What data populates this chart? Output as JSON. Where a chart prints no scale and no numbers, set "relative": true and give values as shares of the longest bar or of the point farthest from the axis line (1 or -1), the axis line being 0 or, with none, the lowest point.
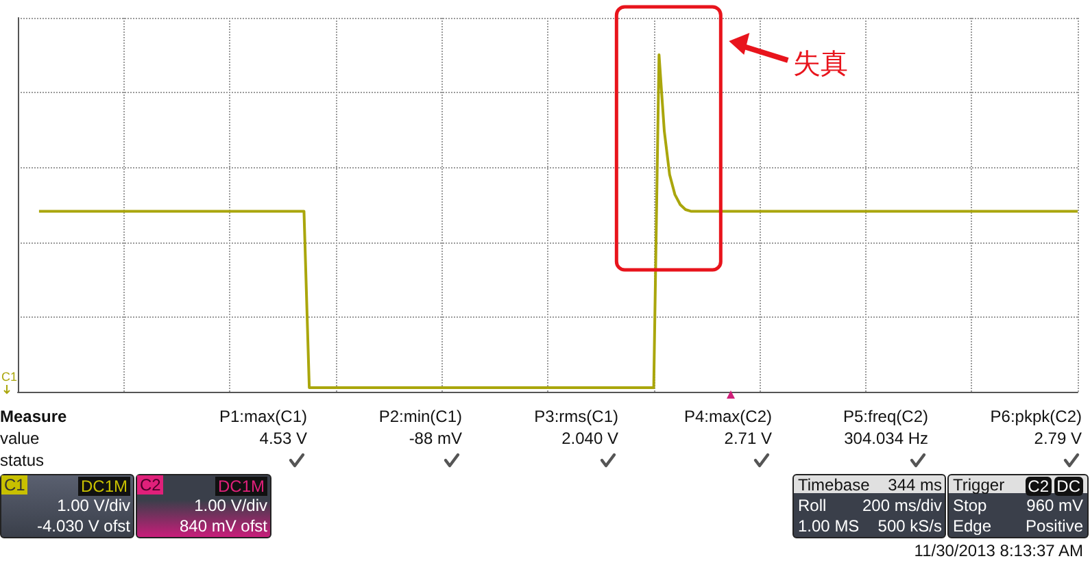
{
  "chart_data": {
    "type": "line",
    "relative": true,
    "grid": true,
    "categories": [
      null,
      null,
      null,
      null,
      null,
      null,
      null,
      null,
      null,
      null,
      null,
      null,
      null,
      null,
      null,
      null,
      null,
      null,
      null,
      null,
      null,
      null,
      null,
      null,
      null,
      null,
      null,
      null,
      null,
      null,
      null,
      null,
      null,
      null,
      null,
      null,
      null,
      null,
      null,
      null,
      null,
      null,
      null,
      null,
      null,
      null,
      null,
      null,
      null,
      null,
      null,
      null,
      null,
      null,
      null,
      null,
      null,
      null,
      null,
      null,
      null,
      null,
      null,
      null,
      null,
      null,
      null,
      null,
      null,
      null,
      null,
      null,
      null,
      null,
      null,
      null,
      null,
      null,
      null,
      null,
      null,
      null,
      null,
      null,
      null,
      null,
      null,
      null,
      null,
      null,
      null,
      null,
      null,
      null,
      null,
      null,
      null,
      null,
      null,
      null,
      null,
      null,
      null,
      null,
      null,
      null,
      null,
      null,
      null,
      null,
      null,
      null,
      null,
      null,
      null,
      null,
      null,
      null,
      null,
      null,
      null,
      null,
      null,
      null,
      null,
      null,
      null,
      null,
      null,
      null,
      null,
      null,
      null,
      null,
      null,
      null,
      null,
      null,
      null,
      null,
      null,
      null,
      null,
      null,
      null,
      null,
      null,
      null,
      null,
      null,
      null,
      null,
      null,
      null,
      null,
      null,
      null,
      null,
      null,
      null,
      null,
      null,
      null,
      null,
      null,
      null,
      null,
      null,
      null,
      null,
      null,
      null,
      null,
      null,
      null,
      null,
      null,
      null,
      null,
      null,
      null,
      null,
      null,
      null,
      null,
      null,
      null,
      null,
      null,
      null,
      null,
      null,
      null,
      null,
      null,
      null,
      null,
      null,
      null,
      null,
      null
    ],
    "series": [
      {
        "color": "#aaa60c",
        "values": [
          null,
          null,
          null,
          null,
          0.53,
          0.53,
          0.53,
          0.53,
          0.53,
          0.53,
          0.53,
          0.53,
          0.53,
          0.53,
          0.53,
          0.53,
          0.53,
          0.53,
          0.53,
          0.53,
          0.53,
          0.53,
          0.53,
          0.53,
          0.53,
          0.53,
          0.53,
          0.53,
          0.53,
          0.53,
          0.53,
          0.53,
          0.53,
          0.53,
          0.53,
          0.53,
          0.53,
          0.53,
          0.53,
          0.53,
          0.53,
          0.53,
          0.53,
          0.53,
          0.53,
          0.53,
          0.53,
          0.53,
          0.53,
          0.53,
          0.53,
          0.53,
          0.53,
          0.53,
          0.53,
          0,
          0,
          0,
          0,
          0,
          0,
          0,
          0,
          0,
          0,
          0,
          0,
          0,
          0,
          0,
          0,
          0,
          0,
          0,
          0,
          0,
          0,
          0,
          0,
          0,
          0,
          0,
          0,
          0,
          0,
          0,
          0,
          0,
          0,
          0,
          0,
          0,
          0,
          0,
          0,
          0,
          0,
          0,
          0,
          0,
          0,
          0,
          0,
          0,
          0,
          0,
          0,
          0,
          0,
          0,
          0,
          0,
          0,
          0,
          0,
          0,
          0,
          0,
          0,
          0,
          0,
          1,
          0.77,
          0.64,
          0.58,
          0.55,
          0.535,
          0.53,
          0.53,
          0.53,
          0.53,
          0.53,
          0.53,
          0.53,
          0.53,
          0.53,
          0.53,
          0.53,
          0.53,
          0.53,
          0.53,
          0.53,
          0.53,
          0.53,
          0.53,
          0.53,
          0.53,
          0.53,
          0.53,
          0.53,
          0.53,
          0.53,
          0.53,
          0.53,
          0.53,
          0.53,
          0.53,
          0.53,
          0.53,
          0.53,
          0.53,
          0.53,
          0.53,
          0.53,
          0.53,
          0.53,
          0.53,
          0.53,
          0.53,
          0.53,
          0.53,
          0.53,
          0.53,
          0.53,
          0.53,
          0.53,
          0.53,
          0.53,
          0.53,
          0.53,
          0.53,
          0.53,
          0.53,
          0.53,
          0.53,
          0.53,
          0.53,
          0.53,
          0.53,
          0.53,
          0.53,
          0.53,
          0.53,
          0.53,
          0.53,
          0.53,
          0.53,
          0.53,
          0.53,
          0.53,
          0.53
        ]
      }
    ],
    "annotations": [
      "失真",
      "Measure",
      "value",
      "status",
      "P1:max(C1)",
      "4.53 V",
      "P2:min(C1)",
      "-88 mV",
      "P3:rms(C1)",
      "2.040 V",
      "P4:max(C2)",
      "2.71 V",
      "P5:freq(C2)",
      "304.034 Hz",
      "P6:pkpk(C2)",
      "2.79 V",
      "C1",
      "DC1M",
      "1.00 V/div",
      "-4.030 V ofst",
      "C2",
      "DC1M",
      "1.00 V/div",
      "840 mV ofst",
      "Timebase",
      "344 ms",
      "Roll",
      "200 ms/div",
      "1.00 MS",
      "500 kS/s",
      "Trigger",
      "C2",
      "DC",
      "Stop",
      "960 mV",
      "Edge",
      "Positive",
      "11/30/2013 8:13:37 AM",
      "C1"
    ]
  }
}
